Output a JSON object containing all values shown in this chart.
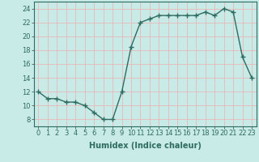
{
  "x": [
    0,
    1,
    2,
    3,
    4,
    5,
    6,
    7,
    8,
    9,
    10,
    11,
    12,
    13,
    14,
    15,
    16,
    17,
    18,
    19,
    20,
    21,
    22,
    23
  ],
  "y": [
    12,
    11,
    11,
    10.5,
    10.5,
    10,
    9,
    8,
    8,
    12,
    18.5,
    22,
    22.5,
    23,
    23,
    23,
    23,
    23,
    23.5,
    23,
    24,
    23.5,
    17,
    14
  ],
  "line_color": "#2e6b60",
  "marker": "+",
  "marker_size": 4,
  "bg_color": "#c8ebe8",
  "grid_color": "#e8b8b8",
  "xlabel": "Humidex (Indice chaleur)",
  "xlabel_fontsize": 7,
  "tick_fontsize": 6,
  "ylim": [
    7,
    25
  ],
  "yticks": [
    8,
    10,
    12,
    14,
    16,
    18,
    20,
    22,
    24
  ],
  "xticks": [
    0,
    1,
    2,
    3,
    4,
    5,
    6,
    7,
    8,
    9,
    10,
    11,
    12,
    13,
    14,
    15,
    16,
    17,
    18,
    19,
    20,
    21,
    22,
    23
  ],
  "line_width": 1.0,
  "spine_color": "#2e6b60",
  "text_color": "#2e6b60"
}
